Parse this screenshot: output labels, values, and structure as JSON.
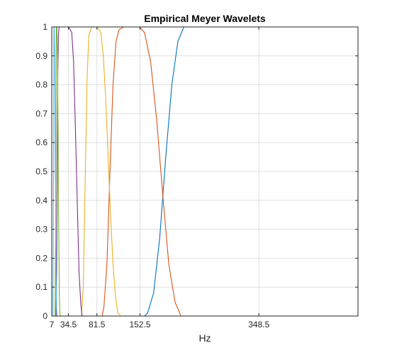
{
  "chart_data": {
    "type": "line",
    "title": "Empirical Meyer Wavelets",
    "xlabel": "Hz",
    "ylabel": "",
    "xlim": [
      7,
      512
    ],
    "ylim": [
      0,
      1
    ],
    "xticks": [
      7,
      34.5,
      81.5,
      152.5,
      348.5
    ],
    "xtick_labels": [
      "7",
      "34.5",
      "81.5",
      "152.5",
      "348.5"
    ],
    "yticks": [
      0,
      0.1,
      0.2,
      0.3,
      0.4,
      0.5,
      0.6,
      0.7,
      0.8,
      0.9,
      1
    ],
    "ytick_labels": [
      "0",
      "0.1",
      "0.2",
      "0.3",
      "0.4",
      "0.5",
      "0.6",
      "0.7",
      "0.8",
      "0.9",
      "1"
    ],
    "grid": true,
    "series": [
      {
        "color": "#0072BD",
        "x": [
          7,
          160,
          165,
          175,
          185,
          195,
          205,
          215,
          225,
          512
        ],
        "y": [
          0,
          0,
          0.01,
          0.08,
          0.27,
          0.55,
          0.8,
          0.95,
          1,
          1
        ]
      },
      {
        "color": "#D95319",
        "x": [
          7,
          90,
          93,
          98,
          103,
          108,
          113,
          118,
          125,
          152,
          160,
          170,
          180,
          190,
          200,
          210,
          220,
          512
        ],
        "y": [
          0,
          0,
          0.03,
          0.18,
          0.5,
          0.8,
          0.95,
          0.99,
          1,
          1,
          0.98,
          0.88,
          0.68,
          0.42,
          0.18,
          0.05,
          0,
          0
        ]
      },
      {
        "color": "#EDB120",
        "x": [
          7,
          56,
          59,
          62,
          65,
          68,
          73,
          82,
          88,
          92,
          96,
          100,
          104,
          108,
          112,
          116,
          121,
          512
        ],
        "y": [
          0,
          0,
          0.1,
          0.45,
          0.8,
          0.97,
          1,
          1,
          0.98,
          0.9,
          0.75,
          0.55,
          0.35,
          0.18,
          0.07,
          0.01,
          0,
          0
        ]
      },
      {
        "color": "#7E2F8E",
        "x": [
          7,
          14,
          15,
          16,
          17,
          18,
          19,
          21,
          35,
          40,
          43,
          46,
          49,
          52,
          55,
          57,
          512
        ],
        "y": [
          0,
          0,
          0.15,
          0.5,
          0.85,
          0.97,
          1,
          1,
          1,
          0.98,
          0.88,
          0.65,
          0.4,
          0.15,
          0.04,
          0,
          0
        ]
      },
      {
        "color": "#77AC30",
        "x": [
          7,
          12.5,
          13.5,
          14,
          14.5,
          15.5,
          16.5,
          17.5,
          18.5,
          19.5,
          20.5,
          21.5,
          512
        ],
        "y": [
          0,
          0,
          0.3,
          0.7,
          1,
          1,
          0.9,
          0.6,
          0.3,
          0.08,
          0.01,
          0,
          0
        ]
      },
      {
        "color": "#4DBEEE",
        "x": [
          7,
          9,
          10,
          10.5,
          11,
          12,
          13,
          14,
          15,
          16,
          512
        ],
        "y": [
          0,
          0,
          0.5,
          1,
          1,
          0.9,
          0.5,
          0.15,
          0.02,
          0,
          0
        ]
      }
    ]
  }
}
